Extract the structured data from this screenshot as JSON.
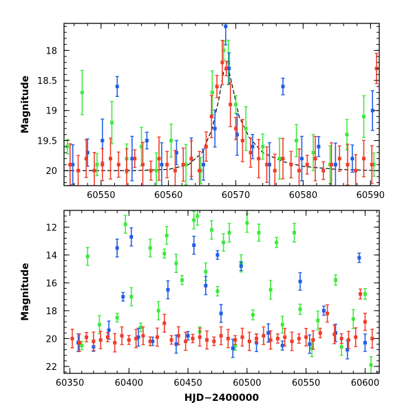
{
  "colors": {
    "green": "#3ee83e",
    "blue": "#1e5ee6",
    "red": "#f03c28",
    "model": "#000000"
  },
  "chart_data": [
    {
      "type": "scatter",
      "title": "",
      "xlabel": "",
      "ylabel": "Magnitude",
      "xlim": [
        60544.5,
        60591.3
      ],
      "ylim": [
        20.25,
        17.55
      ],
      "y_inverted": true,
      "xticks": [
        60550,
        60560,
        60570,
        60580,
        60590
      ],
      "yticks": [
        18,
        18.5,
        19,
        19.5,
        20
      ],
      "xtick_labels": [
        "60550",
        "60560",
        "60570",
        "60580",
        "60590"
      ],
      "ytick_labels": [
        "18",
        "18.5",
        "19",
        "19.5",
        "20"
      ],
      "grid": false,
      "legend": "none",
      "series": [
        {
          "color": "green",
          "x": [
            60545.0,
            60547.2,
            60549.4,
            60551.6,
            60553.8,
            60556.0,
            60558.2,
            60560.4,
            60562.6,
            60564.8,
            60566.5,
            60568.2,
            60568.9,
            60570.0,
            60571.5,
            60574.0,
            60576.5,
            60579.0,
            60581.5,
            60584.0,
            60586.5,
            60589.0,
            60590.5
          ],
          "y": [
            19.6,
            18.7,
            19.9,
            19.2,
            19.8,
            19.6,
            20.0,
            19.5,
            19.9,
            20.0,
            18.7,
            18.0,
            18.2,
            18.9,
            19.3,
            19.6,
            19.8,
            19.5,
            19.7,
            19.9,
            19.4,
            19.1,
            19.9
          ]
        },
        {
          "color": "blue",
          "x": [
            60545.8,
            60548.0,
            60550.2,
            60552.4,
            60554.6,
            60556.8,
            60559.0,
            60561.2,
            60563.4,
            60565.2,
            60566.9,
            60568.5,
            60569.0,
            60570.2,
            60572.5,
            60575.0,
            60577.0,
            60579.8,
            60582.3,
            60584.8,
            60587.3,
            60590.3
          ],
          "y": [
            19.9,
            19.7,
            19.5,
            18.6,
            19.8,
            19.5,
            19.9,
            19.7,
            19.8,
            19.9,
            19.3,
            17.6,
            18.3,
            19.4,
            19.6,
            19.9,
            18.6,
            19.8,
            19.6,
            19.9,
            19.8,
            19.0
          ]
        },
        {
          "color": "red",
          "x": [
            60545.4,
            60546.6,
            60547.8,
            60549.0,
            60550.2,
            60551.4,
            60552.6,
            60553.8,
            60555.0,
            60556.2,
            60557.4,
            60558.6,
            60559.8,
            60561.0,
            60562.2,
            60563.4,
            60564.6,
            60565.6,
            60566.4,
            60567.2,
            60568.0,
            60568.6,
            60569.2,
            60570.0,
            60571.0,
            60572.2,
            60573.4,
            60574.6,
            60575.8,
            60577.0,
            60578.2,
            60579.4,
            60580.6,
            60581.8,
            60583.0,
            60584.2,
            60585.4,
            60586.6,
            60587.8,
            60589.0,
            60590.2,
            60590.9
          ],
          "y": [
            19.9,
            20.0,
            19.8,
            20.0,
            19.9,
            19.8,
            19.9,
            20.0,
            19.8,
            19.9,
            20.0,
            19.8,
            19.9,
            20.0,
            19.9,
            19.8,
            20.0,
            19.6,
            19.1,
            18.6,
            18.2,
            18.3,
            18.9,
            19.3,
            19.5,
            19.7,
            19.8,
            19.9,
            20.0,
            19.8,
            19.9,
            20.0,
            19.9,
            19.8,
            20.0,
            19.9,
            19.8,
            19.9,
            20.0,
            19.8,
            19.9,
            18.3
          ]
        }
      ],
      "model_curve": {
        "color": "model",
        "x": [
          60544.5,
          60555.0,
          60560.0,
          60563.0,
          60565.0,
          60566.5,
          60567.5,
          60568.2,
          60568.8,
          60569.5,
          60570.5,
          60572.0,
          60574.0,
          60577.0,
          60580.0,
          60585.0,
          60591.3
        ],
        "y": [
          20.0,
          20.0,
          19.98,
          19.9,
          19.7,
          19.3,
          18.8,
          18.35,
          18.25,
          18.6,
          19.1,
          19.45,
          19.7,
          19.85,
          19.93,
          19.98,
          20.0
        ]
      }
    },
    {
      "type": "scatter",
      "title": "",
      "xlabel": "HJD−2400000",
      "ylabel": "Magnitude",
      "xlim": [
        60345,
        60612
      ],
      "ylim": [
        22.5,
        10.8
      ],
      "y_inverted": true,
      "xticks": [
        60350,
        60400,
        60450,
        60500,
        60550,
        60600
      ],
      "yticks": [
        12,
        14,
        16,
        18,
        20,
        22
      ],
      "xtick_labels": [
        "60350",
        "60400",
        "60450",
        "60500",
        "60550",
        "60600"
      ],
      "ytick_labels": [
        "12",
        "14",
        "16",
        "18",
        "20",
        "22"
      ],
      "grid": false,
      "legend": "none",
      "series": [
        {
          "color": "green",
          "x": [
            60360,
            60365,
            60375,
            60390,
            60397,
            60402,
            60410,
            60418,
            60425,
            60430,
            60432,
            60440,
            60445,
            60455,
            60458,
            60460,
            60465,
            60470,
            60475,
            60480,
            60485,
            60490,
            60495,
            60500,
            60505,
            60510,
            60520,
            60525,
            60530,
            60540,
            60545,
            60555,
            60560,
            60575,
            60580,
            60590,
            60600,
            60605
          ],
          "y": [
            20.5,
            14.1,
            19.0,
            18.5,
            11.8,
            17.0,
            19.2,
            13.5,
            18.0,
            13.9,
            12.6,
            14.6,
            15.8,
            11.5,
            11.2,
            19.5,
            15.2,
            12.2,
            16.6,
            13.1,
            12.4,
            20.5,
            14.6,
            11.7,
            18.3,
            12.4,
            16.5,
            13.1,
            19.0,
            12.4,
            17.9,
            20.7,
            18.7,
            15.8,
            20.6,
            18.6,
            16.8,
            21.9
          ]
        },
        {
          "color": "blue",
          "x": [
            60357,
            60370,
            60383,
            60390,
            60395,
            60402,
            60408,
            60420,
            60433,
            60440,
            60450,
            60455,
            60465,
            60475,
            60478,
            60488,
            60495,
            60508,
            60518,
            60530,
            60545,
            60553,
            60565,
            60575,
            60585,
            60595,
            60600
          ],
          "y": [
            20.3,
            20.6,
            19.4,
            13.5,
            17.0,
            12.7,
            19.9,
            20.2,
            16.5,
            20.4,
            19.8,
            13.3,
            16.2,
            14.0,
            18.2,
            20.7,
            14.8,
            20.3,
            19.6,
            20.5,
            15.9,
            20.4,
            18.0,
            19.6,
            20.8,
            14.2,
            20.3
          ]
        },
        {
          "color": "red",
          "x": [
            60352,
            60358,
            60364,
            60370,
            60376,
            60382,
            60388,
            60394,
            60400,
            60406,
            60412,
            60418,
            60424,
            60430,
            60436,
            60442,
            60448,
            60454,
            60460,
            60466,
            60472,
            60478,
            60484,
            60490,
            60496,
            60502,
            60508,
            60514,
            60520,
            60526,
            60532,
            60538,
            60544,
            60550,
            60556,
            60562,
            60568,
            60574,
            60580,
            60586,
            60592,
            60596,
            60600,
            60606
          ],
          "y": [
            20.0,
            20.3,
            19.9,
            20.2,
            20.1,
            19.9,
            20.3,
            19.8,
            20.1,
            20.0,
            19.8,
            20.2,
            19.9,
            18.9,
            20.1,
            19.8,
            20.2,
            20.0,
            19.9,
            20.1,
            20.2,
            19.8,
            20.0,
            20.1,
            19.9,
            20.2,
            20.0,
            19.8,
            20.1,
            20.0,
            19.9,
            20.2,
            20.0,
            19.9,
            20.1,
            19.6,
            18.2,
            19.7,
            20.0,
            20.1,
            19.9,
            16.8,
            18.8,
            20.0
          ]
        }
      ]
    }
  ]
}
